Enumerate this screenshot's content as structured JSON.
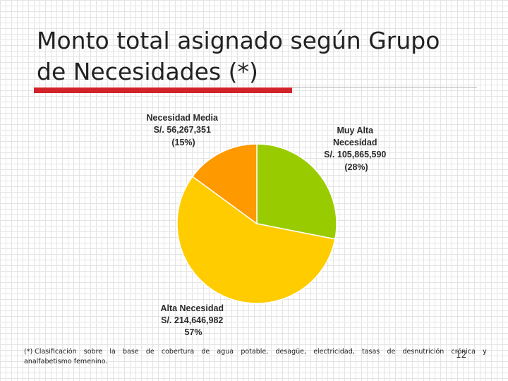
{
  "slide": {
    "title_line1": "Monto total asignado según Grupo",
    "title_line2": "de Necesidades (*)",
    "footnote_words": [
      "(*) Clasificación",
      "sobre",
      "la",
      "base",
      "de",
      "cobertura",
      "de",
      "agua",
      "potable,",
      "desagüe,",
      "electricidad,",
      "tasas",
      "de",
      "desnutrición",
      "crónica",
      "y"
    ],
    "footnote_line2": "analfabetismo femenino.",
    "page_number": "12",
    "accent_color": "#d3232a"
  },
  "chart_data": {
    "type": "pie",
    "slices": [
      {
        "key": "muy_alta",
        "label_lines": [
          "Muy Alta",
          "Necesidad",
          "S/. 105,865,590",
          "(28%)"
        ],
        "value": 105865590,
        "percent": 28,
        "color": "#99cc00"
      },
      {
        "key": "alta",
        "label_lines": [
          "Alta Necesidad",
          "S/. 214,646,982",
          "57%"
        ],
        "value": 214646982,
        "percent": 57,
        "color": "#ffcc00"
      },
      {
        "key": "media",
        "label_lines": [
          "Necesidad Media",
          "S/. 56,267,351",
          "(15%)"
        ],
        "value": 56267351,
        "percent": 15,
        "color": "#ff9900"
      }
    ]
  }
}
